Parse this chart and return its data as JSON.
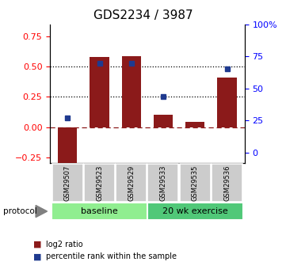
{
  "title": "GDS2234 / 3987",
  "samples": [
    "GSM29507",
    "GSM29523",
    "GSM29529",
    "GSM29533",
    "GSM29535",
    "GSM29536"
  ],
  "log2_ratio": [
    -0.3,
    0.58,
    0.585,
    0.1,
    0.04,
    0.41
  ],
  "percentile_rank": [
    0.27,
    0.7,
    0.695,
    0.44,
    null,
    0.655
  ],
  "bar_color": "#8B1A1A",
  "dot_color": "#1F3A8F",
  "left_ylim": [
    -0.3,
    0.85
  ],
  "right_ylim": [
    -0.0849,
    1.0
  ],
  "left_yticks": [
    -0.25,
    0.0,
    0.25,
    0.5,
    0.75
  ],
  "right_yticks": [
    0,
    0.25,
    0.5,
    0.75,
    1.0
  ],
  "right_yticklabels": [
    "0",
    "25",
    "50",
    "75",
    "100%"
  ],
  "hlines": [
    0.25,
    0.5
  ],
  "groups": [
    {
      "label": "baseline",
      "samples": [
        0,
        1,
        2
      ],
      "color": "#90EE90"
    },
    {
      "label": "20 wk exercise",
      "samples": [
        3,
        4,
        5
      ],
      "color": "#50C878"
    }
  ],
  "protocol_label": "protocol",
  "legend_bar_label": "log2 ratio",
  "legend_dot_label": "percentile rank within the sample",
  "title_fontsize": 11,
  "tick_fontsize": 8,
  "label_fontsize": 7,
  "bar_width": 0.6
}
